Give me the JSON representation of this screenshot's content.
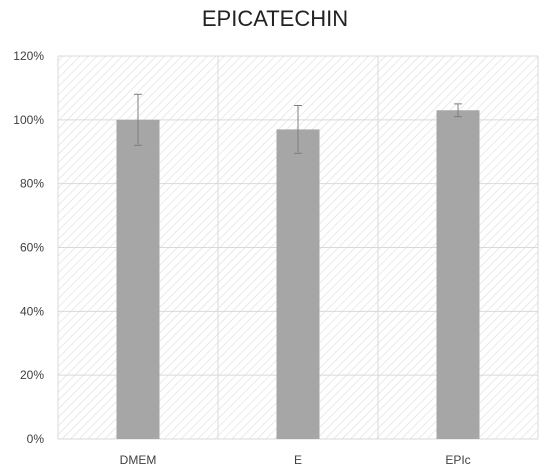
{
  "chart_data": {
    "type": "bar",
    "title": "EPICATECHIN",
    "xlabel": "",
    "ylabel": "",
    "categories": [
      "DMEM",
      "E",
      "EPIc"
    ],
    "values": [
      100,
      97,
      103
    ],
    "error": [
      8,
      7.5,
      2
    ],
    "ylim": [
      0,
      120
    ],
    "yticks": [
      "0%",
      "20%",
      "40%",
      "60%",
      "80%",
      "100%",
      "120%"
    ],
    "ytick_values": [
      0,
      20,
      40,
      60,
      80,
      100,
      120
    ],
    "grid": true,
    "legend": "none",
    "colors": {
      "bar": "#a6a6a6",
      "grid": "#d9d9d9",
      "hatch": "#d9d9d9",
      "error_bar": "#7f7f7f",
      "text": "#404040"
    }
  }
}
